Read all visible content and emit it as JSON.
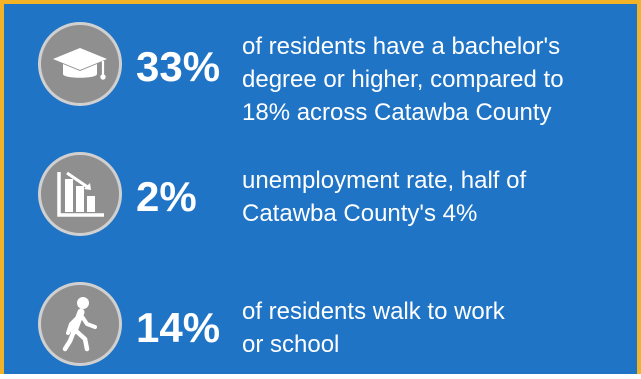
{
  "colors": {
    "background": "#1f74c6",
    "border": "#f3b326",
    "icon_circle": "#8f8f8f",
    "text": "#ffffff"
  },
  "stats": [
    {
      "icon": "graduation-cap-icon",
      "percent": "33%",
      "lines": [
        "of residents have a bachelor's",
        "degree or higher, compared to",
        "18% across Catawba County"
      ]
    },
    {
      "icon": "declining-bar-chart-icon",
      "percent": "2%",
      "lines": [
        "unemployment rate, half of",
        "Catawba County's 4%"
      ]
    },
    {
      "icon": "walking-person-icon",
      "percent": "14%",
      "lines": [
        "of residents walk to work",
        "or school"
      ]
    }
  ]
}
